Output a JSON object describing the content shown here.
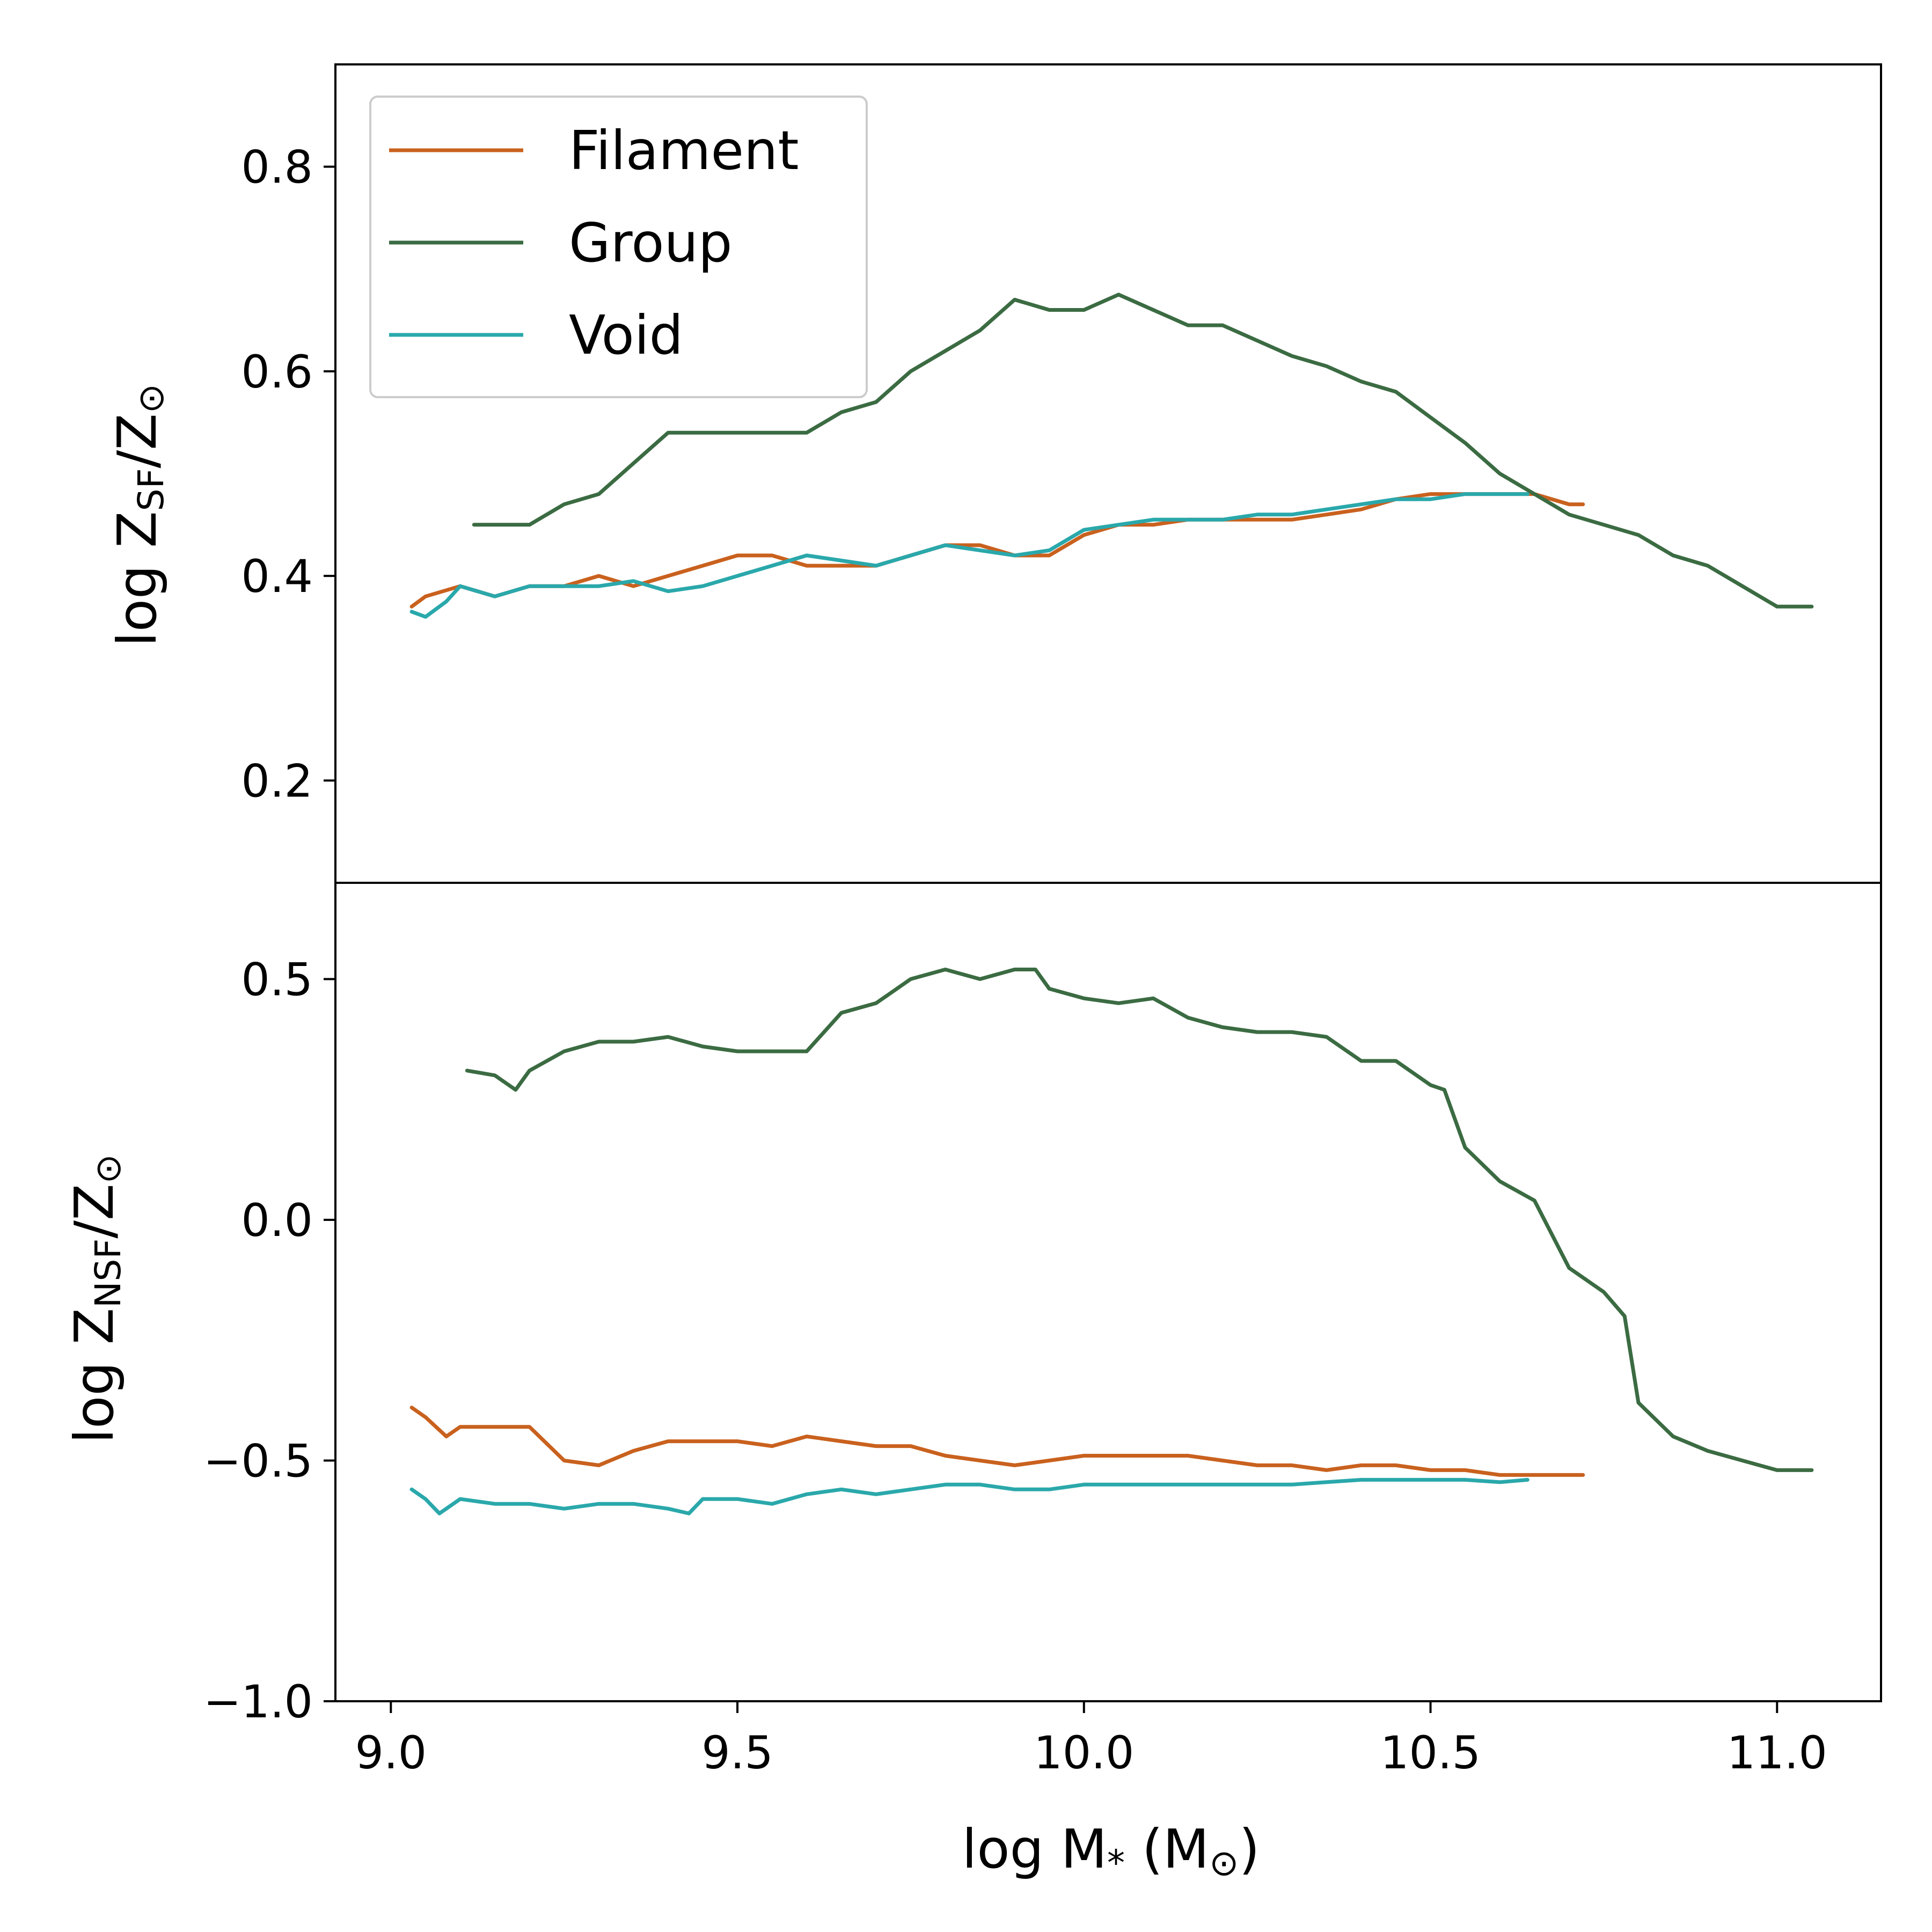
{
  "chart_data": [
    {
      "type": "line",
      "panel": "top",
      "ylabel": "log Z_SF/Z_⊙",
      "ylabel_parts": {
        "prefix": "log Z",
        "sub": "SF",
        "suffix": "/Z",
        "sub2": "⊙"
      },
      "xlim": [
        8.92,
        11.15
      ],
      "ylim": [
        0.1,
        0.9
      ],
      "yticks": [
        0.2,
        0.4,
        0.6,
        0.8
      ],
      "ytick_labels": [
        "0.2",
        "0.4",
        "0.6",
        "0.8"
      ],
      "legend": {
        "position": "top-left",
        "entries": [
          "Filament",
          "Group",
          "Void"
        ]
      },
      "grid": false,
      "series": [
        {
          "name": "Filament",
          "color": "#c9611e",
          "x": [
            9.03,
            9.05,
            9.1,
            9.15,
            9.2,
            9.25,
            9.3,
            9.35,
            9.4,
            9.45,
            9.5,
            9.55,
            9.6,
            9.65,
            9.7,
            9.75,
            9.8,
            9.85,
            9.9,
            9.95,
            10.0,
            10.05,
            10.1,
            10.15,
            10.2,
            10.25,
            10.3,
            10.35,
            10.4,
            10.45,
            10.5,
            10.55,
            10.6,
            10.65,
            10.7,
            10.72
          ],
          "y": [
            0.37,
            0.38,
            0.39,
            0.38,
            0.39,
            0.39,
            0.4,
            0.39,
            0.4,
            0.41,
            0.42,
            0.42,
            0.41,
            0.41,
            0.41,
            0.42,
            0.43,
            0.43,
            0.42,
            0.42,
            0.44,
            0.45,
            0.45,
            0.455,
            0.455,
            0.455,
            0.455,
            0.46,
            0.465,
            0.475,
            0.48,
            0.48,
            0.48,
            0.48,
            0.47,
            0.47
          ]
        },
        {
          "name": "Group",
          "color": "#3b6b42",
          "x": [
            9.12,
            9.15,
            9.2,
            9.25,
            9.3,
            9.35,
            9.4,
            9.45,
            9.5,
            9.55,
            9.6,
            9.65,
            9.7,
            9.75,
            9.8,
            9.85,
            9.9,
            9.95,
            10.0,
            10.05,
            10.1,
            10.15,
            10.2,
            10.25,
            10.3,
            10.35,
            10.4,
            10.45,
            10.5,
            10.55,
            10.6,
            10.65,
            10.7,
            10.75,
            10.8,
            10.85,
            10.9,
            10.95,
            11.0,
            11.05
          ],
          "y": [
            0.45,
            0.45,
            0.45,
            0.47,
            0.48,
            0.51,
            0.54,
            0.54,
            0.54,
            0.54,
            0.54,
            0.56,
            0.57,
            0.6,
            0.62,
            0.64,
            0.67,
            0.66,
            0.66,
            0.675,
            0.66,
            0.645,
            0.645,
            0.63,
            0.615,
            0.605,
            0.59,
            0.58,
            0.555,
            0.53,
            0.5,
            0.48,
            0.46,
            0.45,
            0.44,
            0.42,
            0.41,
            0.39,
            0.37,
            0.37
          ]
        },
        {
          "name": "Void",
          "color": "#2aa8ab",
          "x": [
            9.03,
            9.05,
            9.08,
            9.1,
            9.15,
            9.2,
            9.25,
            9.3,
            9.35,
            9.4,
            9.45,
            9.5,
            9.55,
            9.6,
            9.65,
            9.7,
            9.75,
            9.8,
            9.85,
            9.9,
            9.95,
            10.0,
            10.05,
            10.1,
            10.15,
            10.2,
            10.25,
            10.3,
            10.35,
            10.4,
            10.45,
            10.5,
            10.55,
            10.6,
            10.64
          ],
          "y": [
            0.365,
            0.36,
            0.375,
            0.39,
            0.38,
            0.39,
            0.39,
            0.39,
            0.395,
            0.385,
            0.39,
            0.4,
            0.41,
            0.42,
            0.415,
            0.41,
            0.42,
            0.43,
            0.425,
            0.42,
            0.425,
            0.445,
            0.45,
            0.455,
            0.455,
            0.455,
            0.46,
            0.46,
            0.465,
            0.47,
            0.475,
            0.475,
            0.48,
            0.48,
            0.48
          ]
        }
      ]
    },
    {
      "type": "line",
      "panel": "bottom",
      "xlabel": "log M_* (M_⊙)",
      "xlabel_parts": {
        "prefix": "log M",
        "sub": "*",
        "middle": " (M",
        "sub2": "⊙",
        "suffix": ")"
      },
      "ylabel": "log Z_NSF/Z_⊙",
      "ylabel_parts": {
        "prefix": "log Z",
        "sub": "NSF",
        "suffix": "/Z",
        "sub2": "⊙"
      },
      "xlim": [
        8.92,
        11.15
      ],
      "ylim": [
        -1.0,
        0.7
      ],
      "xticks": [
        9.0,
        9.5,
        10.0,
        10.5,
        11.0
      ],
      "xtick_labels": [
        "9.0",
        "9.5",
        "10.0",
        "10.5",
        "11.0"
      ],
      "yticks": [
        -1.0,
        -0.5,
        0.0,
        0.5
      ],
      "ytick_labels": [
        "−1.0",
        "−0.5",
        "0.0",
        "0.5"
      ],
      "grid": false,
      "series": [
        {
          "name": "Filament",
          "color": "#c9611e",
          "x": [
            9.03,
            9.05,
            9.08,
            9.1,
            9.15,
            9.2,
            9.25,
            9.3,
            9.35,
            9.4,
            9.45,
            9.5,
            9.55,
            9.6,
            9.65,
            9.7,
            9.75,
            9.8,
            9.85,
            9.9,
            9.95,
            10.0,
            10.05,
            10.1,
            10.15,
            10.2,
            10.25,
            10.3,
            10.35,
            10.4,
            10.45,
            10.5,
            10.55,
            10.6,
            10.65,
            10.72
          ],
          "y": [
            -0.39,
            -0.41,
            -0.45,
            -0.43,
            -0.43,
            -0.43,
            -0.5,
            -0.51,
            -0.48,
            -0.46,
            -0.46,
            -0.46,
            -0.47,
            -0.45,
            -0.46,
            -0.47,
            -0.47,
            -0.49,
            -0.5,
            -0.51,
            -0.5,
            -0.49,
            -0.49,
            -0.49,
            -0.49,
            -0.5,
            -0.51,
            -0.51,
            -0.52,
            -0.51,
            -0.51,
            -0.52,
            -0.52,
            -0.53,
            -0.53,
            -0.53
          ]
        },
        {
          "name": "Group",
          "color": "#3b6b42",
          "x": [
            9.11,
            9.15,
            9.18,
            9.2,
            9.25,
            9.3,
            9.35,
            9.4,
            9.45,
            9.5,
            9.55,
            9.6,
            9.65,
            9.7,
            9.75,
            9.8,
            9.85,
            9.9,
            9.93,
            9.95,
            10.0,
            10.05,
            10.1,
            10.15,
            10.2,
            10.25,
            10.3,
            10.35,
            10.4,
            10.45,
            10.5,
            10.52,
            10.55,
            10.6,
            10.65,
            10.7,
            10.75,
            10.78,
            10.8,
            10.85,
            10.9,
            10.95,
            11.0,
            11.05
          ],
          "y": [
            0.31,
            0.3,
            0.27,
            0.31,
            0.35,
            0.37,
            0.37,
            0.38,
            0.36,
            0.35,
            0.35,
            0.35,
            0.43,
            0.45,
            0.5,
            0.52,
            0.5,
            0.52,
            0.52,
            0.48,
            0.46,
            0.45,
            0.46,
            0.42,
            0.4,
            0.39,
            0.39,
            0.38,
            0.33,
            0.33,
            0.28,
            0.27,
            0.15,
            0.08,
            0.04,
            -0.1,
            -0.15,
            -0.2,
            -0.38,
            -0.45,
            -0.48,
            -0.5,
            -0.52,
            -0.52
          ]
        },
        {
          "name": "Void",
          "color": "#2aa8ab",
          "x": [
            9.03,
            9.05,
            9.07,
            9.1,
            9.15,
            9.2,
            9.25,
            9.3,
            9.35,
            9.4,
            9.43,
            9.45,
            9.5,
            9.55,
            9.6,
            9.65,
            9.7,
            9.75,
            9.8,
            9.85,
            9.9,
            9.95,
            10.0,
            10.05,
            10.1,
            10.15,
            10.2,
            10.25,
            10.3,
            10.35,
            10.4,
            10.45,
            10.5,
            10.55,
            10.6,
            10.64
          ],
          "y": [
            -0.56,
            -0.58,
            -0.61,
            -0.58,
            -0.59,
            -0.59,
            -0.6,
            -0.59,
            -0.59,
            -0.6,
            -0.61,
            -0.58,
            -0.58,
            -0.59,
            -0.57,
            -0.56,
            -0.57,
            -0.56,
            -0.55,
            -0.55,
            -0.56,
            -0.56,
            -0.55,
            -0.55,
            -0.55,
            -0.55,
            -0.55,
            -0.55,
            -0.55,
            -0.545,
            -0.54,
            -0.54,
            -0.54,
            -0.54,
            -0.545,
            -0.54
          ]
        }
      ]
    }
  ]
}
